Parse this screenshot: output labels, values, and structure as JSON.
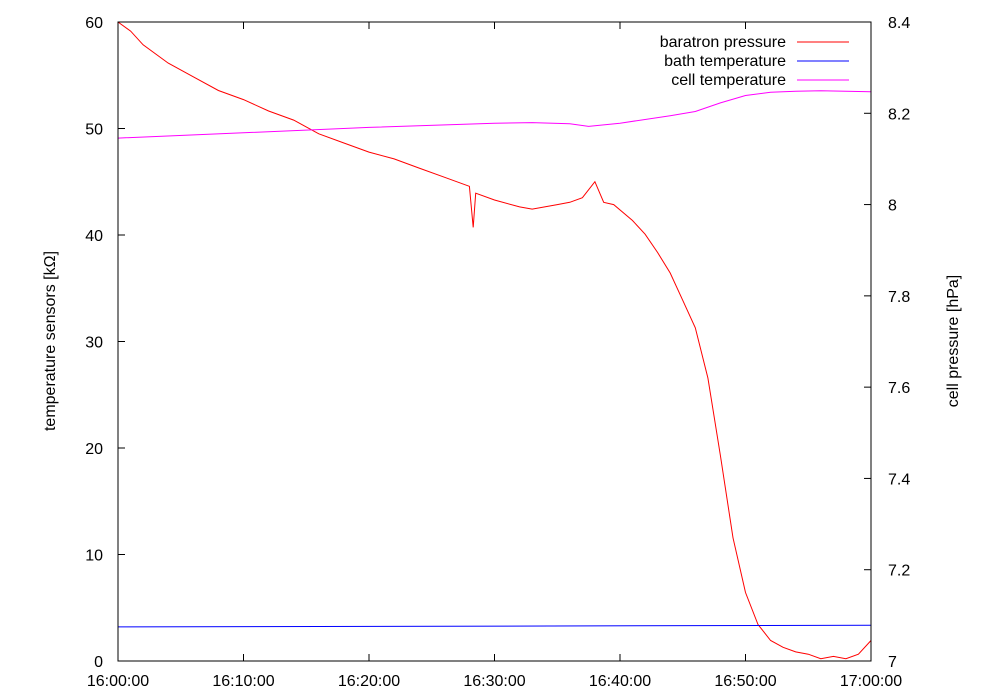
{
  "chart_data": {
    "type": "line",
    "xlabel": "",
    "x_ticks": [
      "16:00:00",
      "16:10:00",
      "16:20:00",
      "16:30:00",
      "16:40:00",
      "16:50:00",
      "17:00:00"
    ],
    "xlim_minutes": [
      0,
      60
    ],
    "y_left": {
      "label": "temperature sensors [kΩ]",
      "lim": [
        0,
        60
      ],
      "ticks": [
        "0",
        "10",
        "20",
        "30",
        "40",
        "50",
        "60"
      ]
    },
    "y_right": {
      "label": "cell pressure [hPa]",
      "lim": [
        7,
        8.4
      ],
      "ticks": [
        "7",
        "7.2",
        "7.4",
        "7.6",
        "7.8",
        "8",
        "8.2",
        "8.4"
      ]
    },
    "grid": false,
    "legend_position": "top-right",
    "series": [
      {
        "name": "baratron pressure",
        "axis": "right",
        "color": "#ff0000",
        "x_minutes": [
          0,
          1,
          2,
          4,
          6,
          8,
          10,
          12,
          14,
          16,
          18,
          20,
          22,
          24,
          26,
          28,
          28.3,
          28.5,
          30,
          32,
          33,
          34,
          35,
          36,
          37,
          38,
          38.7,
          39.5,
          41,
          42,
          43,
          44,
          45,
          46,
          47,
          48,
          49,
          50,
          51,
          52,
          53,
          54,
          55,
          56,
          57,
          58,
          59,
          60
        ],
        "y": [
          8.4,
          8.38,
          8.35,
          8.31,
          8.28,
          8.25,
          8.23,
          8.205,
          8.185,
          8.155,
          8.135,
          8.115,
          8.1,
          8.08,
          8.06,
          8.04,
          7.95,
          8.025,
          8.01,
          7.995,
          7.99,
          7.995,
          8.0,
          8.005,
          8.015,
          8.05,
          8.005,
          8.0,
          7.965,
          7.935,
          7.895,
          7.85,
          7.79,
          7.73,
          7.62,
          7.45,
          7.27,
          7.15,
          7.08,
          7.045,
          7.03,
          7.02,
          7.015,
          7.005,
          7.01,
          7.005,
          7.015,
          7.045
        ]
      },
      {
        "name": "bath temperature",
        "axis": "left",
        "color": "#0000ff",
        "x_minutes": [
          0,
          60
        ],
        "y": [
          3.2,
          3.35
        ]
      },
      {
        "name": "cell temperature",
        "axis": "left",
        "color": "#ff00ff",
        "x_minutes": [
          0,
          10,
          20,
          30,
          33,
          36,
          37.5,
          40,
          44,
          46,
          48,
          50,
          52,
          54,
          56,
          58,
          60
        ],
        "y": [
          49.1,
          49.6,
          50.1,
          50.5,
          50.55,
          50.45,
          50.2,
          50.5,
          51.2,
          51.6,
          52.4,
          53.1,
          53.4,
          53.5,
          53.55,
          53.5,
          53.45
        ]
      }
    ]
  }
}
